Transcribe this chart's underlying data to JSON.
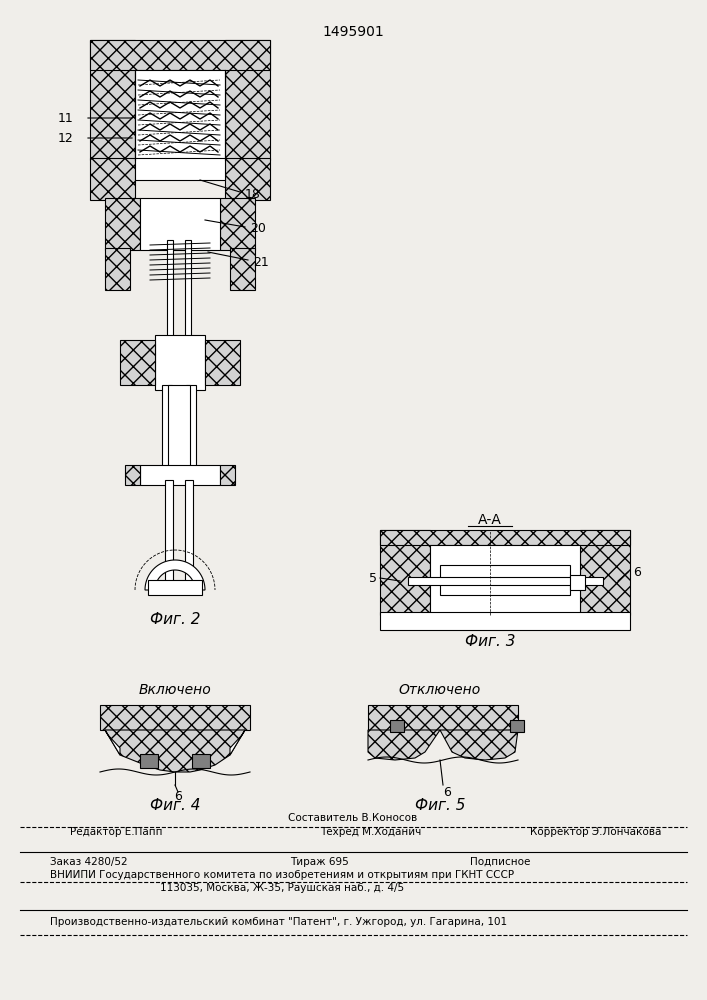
{
  "patent_number": "1495901",
  "bg_color": "#f0eeea",
  "line_color": "#000000",
  "hatch_color": "#000000",
  "fig2_caption": "Фиг. 2",
  "fig3_caption": "Фиг. 3",
  "fig4_caption": "Фиг. 4",
  "fig5_caption": "Фиг. 5",
  "fig3_label": "А-А",
  "label_11": "11",
  "label_12": "12",
  "label_18": "18",
  "label_20": "20",
  "label_21": "21",
  "label_5": "5",
  "label_6a": "6",
  "label_6b": "6",
  "label_6c": "6",
  "fig4_title": "Включено",
  "fig5_title": "Отключено",
  "footer_line1_left": "Редактор Е.Папп",
  "footer_line1_center1": "Составитель В.Коносов",
  "footer_line1_center2": "Техред М.Ходанич",
  "footer_line1_right": "Корректор Э.Лончакова",
  "footer_line2_left": "Заказ 4280/52",
  "footer_line2_center": "Тираж 695",
  "footer_line2_right": "Подписное",
  "footer_line3": "ВНИИПИ Государственного комитета по изобретениям и открытиям при ГКНТ СССР",
  "footer_line4": "113035, Москва, Ж-35, Раушская наб., д. 4/5",
  "footer_line5": "Производственно-издательский комбинат \"Патент\", г. Ужгород, ул. Гагарина, 101"
}
